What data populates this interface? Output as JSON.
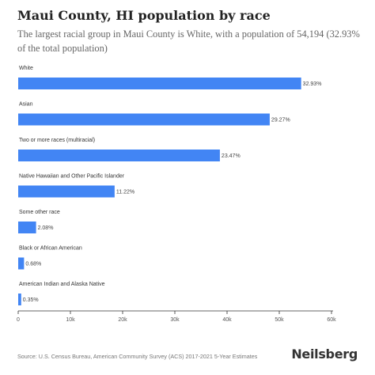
{
  "title": "Maui County, HI population by race",
  "subtitle": "The largest racial group in Maui County is White, with a population of 54,194 (32.93% of the total population)",
  "source": "Source: U.S. Census Bureau, American Community Survey (ACS) 2017-2021 5-Year Estimates",
  "brand": "Neilsberg",
  "colors": {
    "bar": "#4285f4",
    "axis": "#333333"
  },
  "chart_data": {
    "type": "bar",
    "orientation": "horizontal",
    "categories": [
      "White",
      "Asian",
      "Two or more races (multiracial)",
      "Native Hawaiian and Other Pacific Islander",
      "Some other race",
      "Black or African American",
      "American Indian and Alaska Native"
    ],
    "values": [
      54194,
      48170,
      38625,
      18465,
      3423,
      1119,
      576
    ],
    "value_labels": [
      "32.93%",
      "29.27%",
      "23.47%",
      "11.22%",
      "2.08%",
      "0.68%",
      "0.35%"
    ],
    "xlim": [
      0,
      60000
    ],
    "ticks": [
      0,
      10000,
      20000,
      30000,
      40000,
      50000,
      60000
    ],
    "tick_labels": [
      "0",
      "10k",
      "20k",
      "30k",
      "40k",
      "50k",
      "60k"
    ],
    "grid": false
  }
}
